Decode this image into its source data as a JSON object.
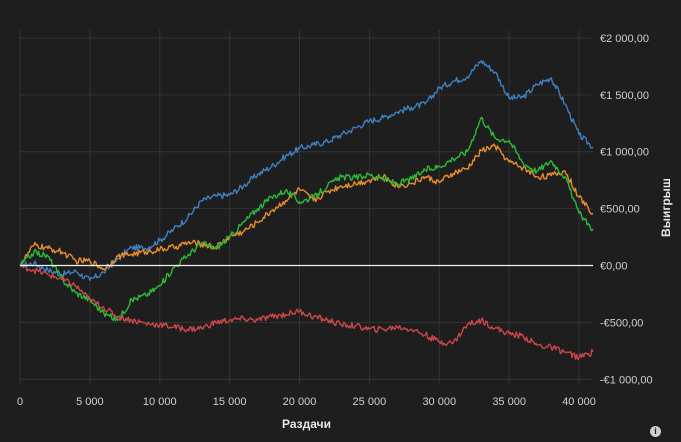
{
  "chart_data": {
    "type": "line",
    "xlabel": "Раздачи",
    "ylabel": "Выигрыш",
    "xlim": [
      0,
      41000
    ],
    "ylim": [
      -1050,
      2070
    ],
    "x_ticks": [
      0,
      5000,
      10000,
      15000,
      20000,
      25000,
      30000,
      35000,
      40000
    ],
    "x_tick_labels": [
      "0",
      "5 000",
      "10 000",
      "15 000",
      "20 000",
      "25 000",
      "30 000",
      "35 000",
      "40 000"
    ],
    "y_ticks": [
      -1000,
      -500,
      0,
      500,
      1000,
      1500,
      2000
    ],
    "y_tick_labels": [
      "-€1 000,00",
      "-€500,00",
      "€0,00",
      "€500,00",
      "€1 000,00",
      "€1 500,00",
      "€2 000,00"
    ],
    "grid": true,
    "legend": "none",
    "series": [
      {
        "color": "#3d7fbf",
        "x": [
          0,
          1000,
          2000,
          3000,
          4000,
          5000,
          6000,
          7000,
          8000,
          9000,
          10000,
          11000,
          12000,
          13000,
          14000,
          15000,
          16000,
          17000,
          18000,
          19000,
          20000,
          21000,
          22000,
          23000,
          24000,
          25000,
          26000,
          27000,
          28000,
          29000,
          30000,
          31000,
          32000,
          33000,
          34000,
          35000,
          36000,
          37000,
          38000,
          39000,
          40000,
          41000
        ],
        "y": [
          0,
          20,
          -40,
          -80,
          -50,
          -130,
          -60,
          60,
          160,
          150,
          220,
          320,
          420,
          570,
          610,
          620,
          700,
          800,
          870,
          960,
          1030,
          1060,
          1090,
          1150,
          1210,
          1270,
          1300,
          1350,
          1390,
          1420,
          1560,
          1620,
          1660,
          1800,
          1700,
          1470,
          1480,
          1590,
          1650,
          1420,
          1150,
          1040
        ]
      },
      {
        "color": "#e88b2e",
        "x": [
          0,
          1000,
          2000,
          3000,
          4000,
          5000,
          6000,
          7000,
          8000,
          9000,
          10000,
          11000,
          12000,
          13000,
          14000,
          15000,
          16000,
          17000,
          18000,
          19000,
          20000,
          21000,
          22000,
          23000,
          24000,
          25000,
          26000,
          27000,
          28000,
          29000,
          30000,
          31000,
          32000,
          33000,
          34000,
          35000,
          36000,
          37000,
          38000,
          39000,
          40000,
          41000
        ],
        "y": [
          0,
          180,
          150,
          120,
          40,
          40,
          -30,
          80,
          100,
          120,
          140,
          160,
          200,
          190,
          160,
          250,
          300,
          380,
          480,
          570,
          670,
          570,
          650,
          700,
          720,
          750,
          780,
          700,
          720,
          780,
          730,
          810,
          850,
          1010,
          1050,
          910,
          860,
          780,
          790,
          830,
          600,
          460
        ]
      },
      {
        "color": "#2db83a",
        "x": [
          0,
          1000,
          2000,
          3000,
          4000,
          5000,
          6000,
          7000,
          8000,
          9000,
          10000,
          11000,
          12000,
          13000,
          14000,
          15000,
          16000,
          17000,
          18000,
          19000,
          20000,
          21000,
          22000,
          23000,
          24000,
          25000,
          26000,
          27000,
          28000,
          29000,
          30000,
          31000,
          32000,
          33000,
          34000,
          35000,
          36000,
          37000,
          38000,
          39000,
          40000,
          41000
        ],
        "y": [
          0,
          120,
          80,
          -120,
          -240,
          -300,
          -420,
          -480,
          -300,
          -260,
          -180,
          -20,
          90,
          200,
          150,
          250,
          380,
          500,
          600,
          660,
          560,
          600,
          700,
          780,
          770,
          800,
          760,
          720,
          760,
          840,
          870,
          940,
          1000,
          1300,
          1120,
          1100,
          900,
          830,
          920,
          780,
          460,
          320
        ]
      },
      {
        "color": "#c8474a",
        "x": [
          0,
          1000,
          2000,
          3000,
          4000,
          5000,
          6000,
          7000,
          8000,
          9000,
          10000,
          11000,
          12000,
          13000,
          14000,
          15000,
          16000,
          17000,
          18000,
          19000,
          20000,
          21000,
          22000,
          23000,
          24000,
          25000,
          26000,
          27000,
          28000,
          29000,
          30000,
          31000,
          32000,
          33000,
          34000,
          35000,
          36000,
          37000,
          38000,
          39000,
          40000,
          41000
        ],
        "y": [
          0,
          -40,
          -80,
          -120,
          -180,
          -300,
          -370,
          -450,
          -480,
          -510,
          -520,
          -540,
          -560,
          -550,
          -500,
          -480,
          -470,
          -480,
          -450,
          -430,
          -400,
          -450,
          -480,
          -520,
          -530,
          -560,
          -560,
          -540,
          -560,
          -610,
          -670,
          -680,
          -520,
          -480,
          -550,
          -600,
          -620,
          -700,
          -720,
          -760,
          -810,
          -760
        ]
      }
    ],
    "zero_line": true
  },
  "footer": {
    "info_icon": "info-icon"
  }
}
